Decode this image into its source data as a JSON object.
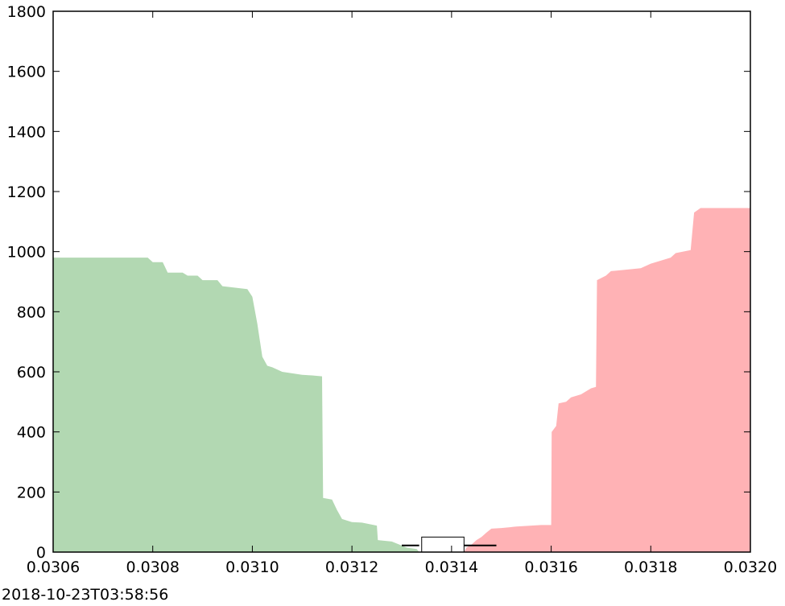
{
  "chart_data": {
    "type": "area",
    "title": "",
    "xlabel": "",
    "ylabel": "",
    "xlim": [
      0.0306,
      0.032
    ],
    "ylim": [
      0,
      1800
    ],
    "x_ticks": [
      "0.0306",
      "0.0308",
      "0.0310",
      "0.0312",
      "0.0314",
      "0.0316",
      "0.0318",
      "0.0320"
    ],
    "y_ticks": [
      "0",
      "200",
      "400",
      "600",
      "800",
      "1000",
      "1200",
      "1400",
      "1600",
      "1800"
    ],
    "grid": false,
    "colors": {
      "bids": "#b2d8b2",
      "asks": "#ffb2b5",
      "marker": "#000000"
    },
    "series": [
      {
        "side": "bids",
        "points": [
          [
            0.0306,
            980
          ],
          [
            0.03079,
            980
          ],
          [
            0.0308,
            965
          ],
          [
            0.03082,
            965
          ],
          [
            0.03083,
            930
          ],
          [
            0.03086,
            930
          ],
          [
            0.03087,
            920
          ],
          [
            0.03089,
            920
          ],
          [
            0.0309,
            905
          ],
          [
            0.03093,
            905
          ],
          [
            0.03094,
            885
          ],
          [
            0.03099,
            875
          ],
          [
            0.031,
            850
          ],
          [
            0.03101,
            760
          ],
          [
            0.03102,
            650
          ],
          [
            0.03103,
            620
          ],
          [
            0.03104,
            615
          ],
          [
            0.03106,
            600
          ],
          [
            0.03108,
            595
          ],
          [
            0.0311,
            590
          ],
          [
            0.03112,
            588
          ],
          [
            0.03114,
            585
          ],
          [
            0.031142,
            180
          ],
          [
            0.03116,
            175
          ],
          [
            0.03117,
            140
          ],
          [
            0.03118,
            110
          ],
          [
            0.0312,
            100
          ],
          [
            0.03122,
            98
          ],
          [
            0.03125,
            88
          ],
          [
            0.031252,
            40
          ],
          [
            0.03128,
            35
          ],
          [
            0.03131,
            15
          ],
          [
            0.03133,
            10
          ],
          [
            0.031335,
            0
          ]
        ]
      },
      {
        "side": "asks",
        "points": [
          [
            0.031425,
            0
          ],
          [
            0.03143,
            15
          ],
          [
            0.03144,
            25
          ],
          [
            0.03145,
            40
          ],
          [
            0.03146,
            50
          ],
          [
            0.03147,
            65
          ],
          [
            0.03148,
            78
          ],
          [
            0.0315,
            80
          ],
          [
            0.03153,
            85
          ],
          [
            0.03156,
            88
          ],
          [
            0.03158,
            90
          ],
          [
            0.0316,
            90
          ],
          [
            0.031601,
            400
          ],
          [
            0.03161,
            420
          ],
          [
            0.031615,
            495
          ],
          [
            0.03163,
            500
          ],
          [
            0.03164,
            515
          ],
          [
            0.03166,
            525
          ],
          [
            0.03168,
            545
          ],
          [
            0.03169,
            550
          ],
          [
            0.031692,
            905
          ],
          [
            0.03171,
            920
          ],
          [
            0.03172,
            935
          ],
          [
            0.03175,
            940
          ],
          [
            0.03178,
            945
          ],
          [
            0.0318,
            960
          ],
          [
            0.03182,
            970
          ],
          [
            0.03184,
            980
          ],
          [
            0.03185,
            995
          ],
          [
            0.03188,
            1005
          ],
          [
            0.031887,
            1130
          ],
          [
            0.0319,
            1145
          ],
          [
            0.032,
            1145
          ]
        ]
      }
    ],
    "box": {
      "x_start": 0.03134,
      "x_end": 0.031425,
      "y_start": 0,
      "y_end": 50
    },
    "markers": [
      {
        "x_start": 0.0313,
        "x_end": 0.031335,
        "y": 22
      },
      {
        "x_start": 0.031425,
        "x_end": 0.03149,
        "y": 22
      }
    ]
  },
  "footer": {
    "timestamp": "2018-10-23T03:58:56"
  }
}
